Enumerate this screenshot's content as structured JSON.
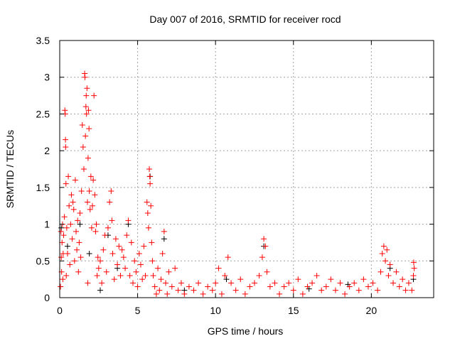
{
  "chart_data": {
    "type": "scatter",
    "title": "Day 007 of 2016, SRMTID for receiver rocd",
    "xlabel": "GPS time / hours",
    "ylabel": "SRMTID / TECUs",
    "xlim": [
      0,
      24
    ],
    "ylim": [
      0,
      3.5
    ],
    "xticks": [
      0,
      5,
      10,
      15,
      20
    ],
    "xtick_labels": [
      "0",
      "5",
      "10",
      "15",
      "20"
    ],
    "yticks": [
      0,
      0.5,
      1,
      1.5,
      2,
      2.5,
      3,
      3.5
    ],
    "ytick_labels": [
      "0",
      "0.5",
      "1",
      "1.5",
      "2",
      "2.5",
      "3",
      "3.5"
    ],
    "grid": true,
    "legend": "none",
    "series": [
      {
        "name": "red",
        "color": "#ff0000",
        "points": [
          [
            0.05,
            0.15
          ],
          [
            0.08,
            0.9
          ],
          [
            0.1,
            0.55
          ],
          [
            0.12,
            0.35
          ],
          [
            0.15,
            0.75
          ],
          [
            0.18,
            1.0
          ],
          [
            0.2,
            0.25
          ],
          [
            0.22,
            0.6
          ],
          [
            0.25,
            0.85
          ],
          [
            0.3,
            1.1
          ],
          [
            0.33,
            2.55
          ],
          [
            0.35,
            2.5
          ],
          [
            0.37,
            2.15
          ],
          [
            0.38,
            2.05
          ],
          [
            0.4,
            1.55
          ],
          [
            0.42,
            0.3
          ],
          [
            0.45,
            0.95
          ],
          [
            0.5,
            0.6
          ],
          [
            0.55,
            1.65
          ],
          [
            0.6,
            1.25
          ],
          [
            0.65,
            0.45
          ],
          [
            0.7,
            1.0
          ],
          [
            0.75,
            1.4
          ],
          [
            0.8,
            0.8
          ],
          [
            0.85,
            1.3
          ],
          [
            0.9,
            1.2
          ],
          [
            0.95,
            0.5
          ],
          [
            1.0,
            1.6
          ],
          [
            1.05,
            0.9
          ],
          [
            1.1,
            0.65
          ],
          [
            1.15,
            1.05
          ],
          [
            1.2,
            0.35
          ],
          [
            1.25,
            0.75
          ],
          [
            1.3,
            1.15
          ],
          [
            1.35,
            0.55
          ],
          [
            1.4,
            1.45
          ],
          [
            1.45,
            2.35
          ],
          [
            1.5,
            2.05
          ],
          [
            1.55,
            1.75
          ],
          [
            1.6,
            3.05
          ],
          [
            1.62,
            3.0
          ],
          [
            1.65,
            2.2
          ],
          [
            1.68,
            2.6
          ],
          [
            1.7,
            2.75
          ],
          [
            1.72,
            2.5
          ],
          [
            1.75,
            2.85
          ],
          [
            1.78,
            1.3
          ],
          [
            1.8,
            0.2
          ],
          [
            1.82,
            1.9
          ],
          [
            1.85,
            2.55
          ],
          [
            1.88,
            2.3
          ],
          [
            1.9,
            1.45
          ],
          [
            1.95,
            1.2
          ],
          [
            2.0,
            1.65
          ],
          [
            2.05,
            0.95
          ],
          [
            2.1,
            1.25
          ],
          [
            2.15,
            1.6
          ],
          [
            2.2,
            2.75
          ],
          [
            2.25,
            1.4
          ],
          [
            2.3,
            0.9
          ],
          [
            2.35,
            1.0
          ],
          [
            2.4,
            0.3
          ],
          [
            2.45,
            0.55
          ],
          [
            2.5,
            0.4
          ],
          [
            2.6,
            0.5
          ],
          [
            2.7,
            0.2
          ],
          [
            2.8,
            0.65
          ],
          [
            2.9,
            0.85
          ],
          [
            3.0,
            0.35
          ],
          [
            3.1,
            0.95
          ],
          [
            3.2,
            1.3
          ],
          [
            3.3,
            1.45
          ],
          [
            3.35,
            1.05
          ],
          [
            3.4,
            0.6
          ],
          [
            3.5,
            0.25
          ],
          [
            3.6,
            0.8
          ],
          [
            3.7,
            0.45
          ],
          [
            3.8,
            0.7
          ],
          [
            3.9,
            0.3
          ],
          [
            4.0,
            0.65
          ],
          [
            4.1,
            0.55
          ],
          [
            4.2,
            0.4
          ],
          [
            4.3,
            0.85
          ],
          [
            4.4,
            1.05
          ],
          [
            4.5,
            0.3
          ],
          [
            4.6,
            0.75
          ],
          [
            4.7,
            0.2
          ],
          [
            4.8,
            0.5
          ],
          [
            4.9,
            0.35
          ],
          [
            5.0,
            0.15
          ],
          [
            5.1,
            0.6
          ],
          [
            5.2,
            0.45
          ],
          [
            5.3,
            0.25
          ],
          [
            5.4,
            0.7
          ],
          [
            5.5,
            0.3
          ],
          [
            5.6,
            1.3
          ],
          [
            5.65,
            1.15
          ],
          [
            5.7,
            0.95
          ],
          [
            5.75,
            1.75
          ],
          [
            5.78,
            1.65
          ],
          [
            5.8,
            1.55
          ],
          [
            5.85,
            1.25
          ],
          [
            5.9,
            0.75
          ],
          [
            5.95,
            0.5
          ],
          [
            6.0,
            0.3
          ],
          [
            6.1,
            0.15
          ],
          [
            6.2,
            0.05
          ],
          [
            6.3,
            0.4
          ],
          [
            6.4,
            0.1
          ],
          [
            6.5,
            0.25
          ],
          [
            6.6,
            0.6
          ],
          [
            6.7,
            0.9
          ],
          [
            6.8,
            0.2
          ],
          [
            6.9,
            0.05
          ],
          [
            7.0,
            0.35
          ],
          [
            7.2,
            0.15
          ],
          [
            7.4,
            0.4
          ],
          [
            7.6,
            0.1
          ],
          [
            7.8,
            0.2
          ],
          [
            8.0,
            0.05
          ],
          [
            8.3,
            0.15
          ],
          [
            8.6,
            0.1
          ],
          [
            8.9,
            0.2
          ],
          [
            9.2,
            0.05
          ],
          [
            9.5,
            0.15
          ],
          [
            9.8,
            0.1
          ],
          [
            10.0,
            0.2
          ],
          [
            10.2,
            0.4
          ],
          [
            10.4,
            0.05
          ],
          [
            10.6,
            0.3
          ],
          [
            10.8,
            0.55
          ],
          [
            11.0,
            0.2
          ],
          [
            11.3,
            0.1
          ],
          [
            11.6,
            0.25
          ],
          [
            11.9,
            0.05
          ],
          [
            12.2,
            0.15
          ],
          [
            12.5,
            0.2
          ],
          [
            12.8,
            0.3
          ],
          [
            13.0,
            0.55
          ],
          [
            13.1,
            0.8
          ],
          [
            13.2,
            0.7
          ],
          [
            13.3,
            0.35
          ],
          [
            13.5,
            0.15
          ],
          [
            13.8,
            0.2
          ],
          [
            14.1,
            0.05
          ],
          [
            14.4,
            0.15
          ],
          [
            14.7,
            0.2
          ],
          [
            15.0,
            0.1
          ],
          [
            15.3,
            0.25
          ],
          [
            15.6,
            0.05
          ],
          [
            15.9,
            0.15
          ],
          [
            16.2,
            0.2
          ],
          [
            16.5,
            0.3
          ],
          [
            16.8,
            0.1
          ],
          [
            17.1,
            0.15
          ],
          [
            17.4,
            0.25
          ],
          [
            17.7,
            0.1
          ],
          [
            18.0,
            0.2
          ],
          [
            18.3,
            0.05
          ],
          [
            18.6,
            0.15
          ],
          [
            18.9,
            0.2
          ],
          [
            19.2,
            0.1
          ],
          [
            19.5,
            0.25
          ],
          [
            19.8,
            0.15
          ],
          [
            20.1,
            0.2
          ],
          [
            20.4,
            0.1
          ],
          [
            20.6,
            0.35
          ],
          [
            20.7,
            0.6
          ],
          [
            20.8,
            0.7
          ],
          [
            20.9,
            0.5
          ],
          [
            21.0,
            0.65
          ],
          [
            21.1,
            0.3
          ],
          [
            21.2,
            0.45
          ],
          [
            21.4,
            0.2
          ],
          [
            21.6,
            0.35
          ],
          [
            21.8,
            0.15
          ],
          [
            22.0,
            0.25
          ],
          [
            22.2,
            0.1
          ],
          [
            22.4,
            0.2
          ],
          [
            22.6,
            0.1
          ],
          [
            22.7,
            0.3
          ],
          [
            22.72,
            0.48
          ],
          [
            22.75,
            0.4
          ]
        ]
      },
      {
        "name": "black",
        "color": "#000000",
        "points": [
          [
            0.1,
            0.95
          ],
          [
            0.5,
            0.7
          ],
          [
            1.3,
            1.0
          ],
          [
            1.9,
            0.6
          ],
          [
            2.6,
            0.1
          ],
          [
            3.1,
            0.85
          ],
          [
            3.7,
            0.4
          ],
          [
            4.4,
            1.0
          ],
          [
            5.8,
            1.65
          ],
          [
            6.7,
            0.8
          ],
          [
            8.0,
            0.1
          ],
          [
            10.7,
            0.25
          ],
          [
            13.1,
            0.7
          ],
          [
            16.0,
            0.12
          ],
          [
            18.5,
            0.18
          ],
          [
            21.2,
            0.4
          ],
          [
            22.7,
            0.25
          ]
        ]
      }
    ]
  }
}
